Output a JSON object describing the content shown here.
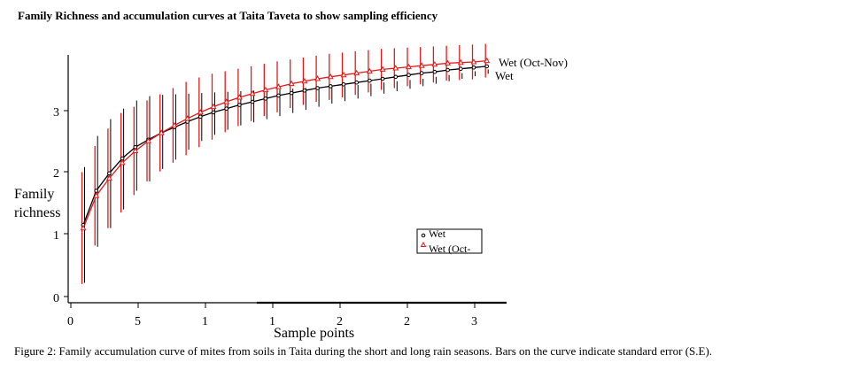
{
  "page": {
    "title": "Family Richness and accumulation curves at Taita Taveta to show sampling efficiency",
    "caption": "Figure 2: Family accumulation curve of mites from soils in Taita during the short and long rain seasons. Bars on the curve indicate standard error (S.E)."
  },
  "chart_data": {
    "type": "line",
    "title": "Family Richness and accumulation curves at Taita Taveta to show sampling efficiency",
    "xlabel": "Sample points",
    "ylabel_lines": [
      "Family",
      "richness"
    ],
    "y_ticks": [
      "0",
      "1",
      "2",
      "3"
    ],
    "x_tick_labels": [
      "0",
      "5",
      "1",
      "1",
      "2",
      "2",
      "3"
    ],
    "ylim": [
      0,
      4
    ],
    "x": [
      1,
      2,
      3,
      4,
      5,
      6,
      7,
      8,
      9,
      10,
      11,
      12,
      13,
      14,
      15,
      16,
      17,
      18,
      19,
      20,
      21,
      22,
      23,
      24,
      25,
      26,
      27,
      28,
      29,
      30,
      31,
      32
    ],
    "series": [
      {
        "name": "Wet",
        "label": "Wet",
        "legend_label": "Wet",
        "color": "#000000",
        "marker": "circle",
        "values": [
          1.15,
          1.7,
          1.98,
          2.22,
          2.4,
          2.52,
          2.63,
          2.72,
          2.81,
          2.89,
          2.96,
          3.02,
          3.08,
          3.13,
          3.18,
          3.23,
          3.27,
          3.31,
          3.35,
          3.38,
          3.41,
          3.44,
          3.47,
          3.5,
          3.53,
          3.56,
          3.59,
          3.61,
          3.64,
          3.66,
          3.68,
          3.7
        ],
        "se_upper": [
          2.08,
          2.58,
          2.85,
          3.02,
          3.15,
          3.22,
          3.24,
          3.25,
          3.26,
          3.27,
          3.28,
          3.29,
          3.3,
          3.31,
          3.32,
          3.33,
          3.34,
          3.35,
          3.36,
          3.37,
          3.38,
          3.4,
          3.42,
          3.44,
          3.46,
          3.48,
          3.5,
          3.53,
          3.56,
          3.59,
          3.62,
          3.65
        ],
        "se_lower": [
          0.22,
          0.8,
          1.1,
          1.4,
          1.7,
          1.85,
          2.05,
          2.2,
          2.36,
          2.5,
          2.6,
          2.68,
          2.75,
          2.8,
          2.85,
          2.9,
          2.95,
          3.0,
          3.05,
          3.1,
          3.14,
          3.18,
          3.22,
          3.26,
          3.3,
          3.34,
          3.38,
          3.42,
          3.46,
          3.5,
          3.54,
          3.58
        ]
      },
      {
        "name": "Wet (Oct-Nov)",
        "label": "Wet (Oct-Nov)",
        "legend_label": "Wet (Oct-",
        "color": "#e11b1b",
        "marker": "triangle",
        "values": [
          1.1,
          1.62,
          1.9,
          2.15,
          2.34,
          2.5,
          2.63,
          2.75,
          2.86,
          2.96,
          3.05,
          3.13,
          3.2,
          3.26,
          3.32,
          3.37,
          3.42,
          3.46,
          3.5,
          3.53,
          3.56,
          3.59,
          3.62,
          3.65,
          3.67,
          3.69,
          3.71,
          3.73,
          3.75,
          3.76,
          3.77,
          3.79
        ],
        "se_upper": [
          2.0,
          2.42,
          2.7,
          2.95,
          3.05,
          3.15,
          3.25,
          3.35,
          3.45,
          3.52,
          3.58,
          3.62,
          3.66,
          3.7,
          3.74,
          3.78,
          3.81,
          3.84,
          3.87,
          3.9,
          3.92,
          3.94,
          3.96,
          3.98,
          3.99,
          4.0,
          4.01,
          4.02,
          4.03,
          4.04,
          4.05,
          4.06
        ],
        "se_lower": [
          0.2,
          0.82,
          1.1,
          1.35,
          1.63,
          1.85,
          2.01,
          2.15,
          2.27,
          2.4,
          2.52,
          2.64,
          2.74,
          2.82,
          2.9,
          2.96,
          3.03,
          3.08,
          3.13,
          3.16,
          3.2,
          3.24,
          3.28,
          3.32,
          3.35,
          3.38,
          3.41,
          3.44,
          3.47,
          3.48,
          3.49,
          3.52
        ]
      }
    ],
    "legend_position": "bottom-right"
  }
}
